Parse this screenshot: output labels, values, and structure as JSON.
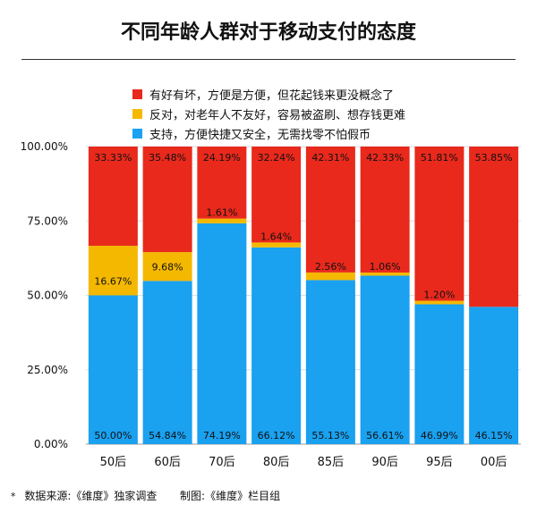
{
  "title": "不同年龄人群对于移动支付的态度",
  "legend": [
    {
      "label": "有好有坏，方便是方便，但花起钱来更没概念了",
      "color": "#e8291c"
    },
    {
      "label": "反对，对老年人不友好，容易被盗刷、想存钱更难",
      "color": "#f5b800"
    },
    {
      "label": "支持，方便快捷又安全，无需找零不怕假币",
      "color": "#1aa1f0"
    }
  ],
  "chart_data": {
    "type": "bar",
    "stacked": true,
    "categories": [
      "50后",
      "60后",
      "70后",
      "80后",
      "85后",
      "90后",
      "95后",
      "00后"
    ],
    "series": [
      {
        "name": "支持，方便快捷又安全，无需找零不怕假币",
        "color": "#1aa1f0",
        "values": [
          50.0,
          54.84,
          74.19,
          66.12,
          55.13,
          56.61,
          46.99,
          46.15
        ],
        "labels": [
          "50.00%",
          "54.84%",
          "74.19%",
          "66.12%",
          "55.13%",
          "56.61%",
          "46.99%",
          "46.15%"
        ]
      },
      {
        "name": "反对，对老年人不友好，容易被盗刷、想存钱更难",
        "color": "#f5b800",
        "values": [
          16.67,
          9.68,
          1.61,
          1.64,
          2.56,
          1.06,
          1.2,
          0
        ],
        "labels": [
          "16.67%",
          "9.68%",
          "1.61%",
          "1.64%",
          "2.56%",
          "1.06%",
          "1.20%",
          ""
        ]
      },
      {
        "name": "有好有坏，方便是方便，但花起钱来更没概念了",
        "color": "#e8291c",
        "values": [
          33.33,
          35.48,
          24.19,
          32.24,
          42.31,
          42.33,
          51.81,
          53.85
        ],
        "labels": [
          "33.33%",
          "35.48%",
          "24.19%",
          "32.24%",
          "42.31%",
          "42.33%",
          "51.81%",
          "53.85%"
        ]
      }
    ],
    "yticks": [
      "0.00%",
      "25.00%",
      "50.00%",
      "75.00%",
      "100.00%"
    ],
    "ylim": [
      0,
      100
    ],
    "grid": true
  },
  "footer": {
    "star": "*",
    "source": "数据来源:《维度》独家调查",
    "credit": "制图:《维度》栏目组"
  }
}
